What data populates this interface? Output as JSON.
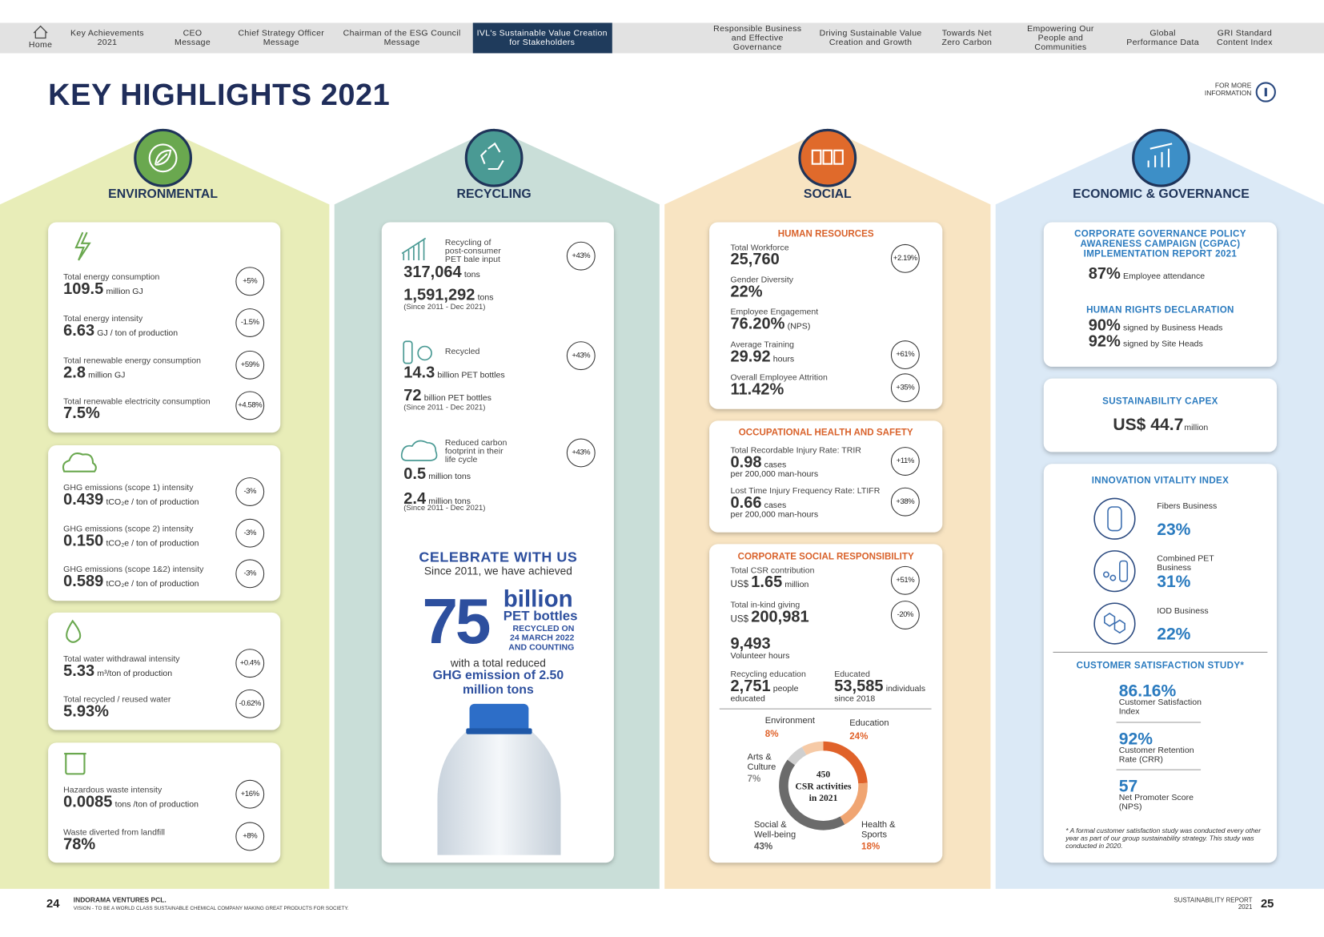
{
  "nav": {
    "items": [
      "Home",
      "Key Achievements 2021",
      "CEO Message",
      "Chief Strategy Officer Message",
      "Chairman of the ESG Council Message",
      "IVL's Sustainable Value Creation for Stakeholders",
      "Responsible Business and Effective Governance",
      "Driving Sustainable Value Creation and Growth",
      "Towards Net Zero Carbon",
      "Empowering Our People and Communities",
      "Global Performance Data",
      "GRI Standard Content Index"
    ]
  },
  "header": {
    "title": "KEY HIGHLIGHTS 2021",
    "more_info": "FOR MORE INFORMATION"
  },
  "environmental": {
    "heading": "ENVIRONMENTAL",
    "cards": [
      {
        "items": [
          {
            "label": "Total energy consumption",
            "value": "109.5",
            "unit": "million GJ",
            "change": "+5%"
          },
          {
            "label": "Total energy intensity",
            "value": "6.63",
            "unit": "GJ / ton of production",
            "change": "-1.5%"
          },
          {
            "label": "Total renewable energy consumption",
            "value": "2.8",
            "unit": "million GJ",
            "change": "+59%"
          },
          {
            "label": "Total renewable electricity consumption",
            "value": "7.5%",
            "change": "+4.58%"
          }
        ]
      },
      {
        "items": [
          {
            "label": "GHG emissions (scope 1) intensity",
            "value": "0.439",
            "unit": "tCO₂e / ton of production",
            "change": "-3%"
          },
          {
            "label": "GHG emissions (scope 2) intensity",
            "value": "0.150",
            "unit": "tCO₂e / ton of production",
            "change": "-3%"
          },
          {
            "label": "GHG emissions (scope 1&2) intensity",
            "value": "0.589",
            "unit": "tCO₂e / ton of production",
            "change": "-3%"
          }
        ]
      },
      {
        "items": [
          {
            "label": "Total water withdrawal intensity",
            "value": "5.33",
            "unit": "m³/ton of production",
            "change": "+0.4%"
          },
          {
            "label": "Total recycled / reused water",
            "value": "5.93%",
            "change": "-0.62%"
          }
        ]
      },
      {
        "items": [
          {
            "label": "Hazardous waste intensity",
            "value": "0.0085",
            "unit": "tons /ton of production",
            "change": "+16%"
          },
          {
            "label": "Waste diverted from landfill",
            "value": "78%",
            "change": "+8%"
          }
        ]
      }
    ]
  },
  "recycling": {
    "heading": "RECYCLING",
    "items": [
      {
        "label": "Recycling of post-consumer PET bale input",
        "value": "317,064",
        "unit": "tons",
        "change": "+43%",
        "total": "1,591,292",
        "total_unit": "tons",
        "period": "(Since 2011 - Dec 2021)"
      },
      {
        "label": "Recycled",
        "value": "14.3",
        "unit": "billion PET bottles",
        "change": "+43%",
        "total": "72",
        "total_unit": "billion PET bottles",
        "period": "(Since 2011 - Dec 2021)"
      },
      {
        "label": "Reduced carbon footprint in their life cycle",
        "value": "0.5",
        "unit": "million tons",
        "change": "+43%",
        "total": "2.4",
        "total_unit": "million tons",
        "period": "(Since 2011 - Dec 2021)"
      }
    ],
    "celebrate": {
      "title": "CELEBRATE WITH US",
      "subtitle": "Since 2011, we have achieved",
      "number": "75",
      "scale": "billion",
      "object": "PET bottles",
      "date": "RECYCLED ON 24 MARCH 2022 AND COUNTING",
      "text": "with a total reduced",
      "ghg": "GHG emission of 2.50 million tons"
    }
  },
  "social": {
    "heading": "SOCIAL",
    "hr": {
      "title": "HUMAN RESOURCES",
      "items": [
        {
          "label": "Total Workforce",
          "value": "25,760",
          "change": "+2.19%"
        },
        {
          "label": "Gender Diversity",
          "value": "22%"
        },
        {
          "label": "Employee Engagement",
          "value": "76.20%",
          "unit": "(NPS)"
        },
        {
          "label": "Average Training",
          "value": "29.92",
          "unit": "hours",
          "change": "+61%"
        },
        {
          "label": "Overall Employee Attrition",
          "value": "11.42%",
          "change": "+35%"
        }
      ]
    },
    "ohs": {
      "title": "OCCUPATIONAL HEALTH AND SAFETY",
      "items": [
        {
          "label": "Total Recordable Injury Rate: TRIR",
          "value": "0.98",
          "unit": "cases",
          "note": "per 200,000 man-hours",
          "change": "+11%"
        },
        {
          "label": "Lost Time Injury Frequency Rate: LTIFR",
          "value": "0.66",
          "unit": "cases",
          "note": "per 200,000 man-hours",
          "change": "+38%"
        }
      ]
    },
    "csr": {
      "title": "CORPORATE SOCIAL RESPONSIBILITY",
      "items": [
        {
          "label": "Total CSR contribution",
          "prefix": "US$",
          "value": "1.65",
          "unit": "million",
          "change": "+51%"
        },
        {
          "label": "Total in-kind giving",
          "prefix": "US$",
          "value": "200,981",
          "change": "-20%"
        },
        {
          "value": "9,493",
          "note": "Volunteer hours"
        },
        {
          "label": "Recycling education",
          "value": "2,751",
          "unit": "people",
          "note": "educated"
        },
        {
          "label": "Educated",
          "value": "53,585",
          "unit": "individuals",
          "note": "since 2018"
        }
      ],
      "activities": {
        "type": "pie",
        "total": 450,
        "title": "CSR activities in 2021",
        "categories": [
          "Education",
          "Health & Sports",
          "Social & Well-being",
          "Arts & Culture",
          "Environment"
        ],
        "values": [
          24,
          18,
          43,
          7,
          8
        ],
        "value_labels": [
          "24%",
          "18%",
          "43%",
          "7%",
          "8%"
        ],
        "colors": [
          "#e0622a",
          "#f0a572",
          "#6b6b6b",
          "#cfcfcf",
          "#f6caa6"
        ]
      }
    }
  },
  "economic": {
    "heading": "ECONOMIC & GOVERNANCE",
    "cgpac": {
      "title": "CORPORATE GOVERNANCE POLICY AWARENESS CAMPAIGN (CGPAC) IMPLEMENTATION REPORT 2021",
      "value": "87%",
      "text": "Employee attendance"
    },
    "human_rights": {
      "title": "HUMAN RIGHTS DECLARATION",
      "items": [
        {
          "value": "90%",
          "text": "signed by Business Heads"
        },
        {
          "value": "92%",
          "text": "signed by Site Heads"
        }
      ]
    },
    "capex": {
      "title": "SUSTAINABILITY CAPEX",
      "value": "US$ 44.7",
      "unit": "million"
    },
    "innovation": {
      "title": "INNOVATION VITALITY INDEX",
      "items": [
        {
          "name": "Fibers Business",
          "value": "23%"
        },
        {
          "name": "Combined PET Business",
          "value": "31%"
        },
        {
          "name": "IOD Business",
          "value": "22%"
        }
      ]
    },
    "customer": {
      "title": "CUSTOMER SATISFACTION STUDY*",
      "items": [
        {
          "value": "86.16%",
          "label": "Customer Satisfaction Index"
        },
        {
          "value": "92%",
          "label": "Customer Retention Rate (CRR)"
        },
        {
          "value": "57",
          "label": "Net Promoter Score (NPS)"
        }
      ],
      "note": "* A formal customer satisfaction study was conducted every other year as part of our group sustainability strategy. This study was conducted in 2020."
    }
  },
  "footer": {
    "left_page": "24",
    "company": "INDORAMA VENTURES PCL.",
    "vision": "VISION - TO BE A WORLD CLASS SUSTAINABLE CHEMICAL COMPANY MAKING GREAT PRODUCTS FOR SOCIETY.",
    "report": "SUSTAINABILITY REPORT 2021",
    "right_page": "25"
  }
}
